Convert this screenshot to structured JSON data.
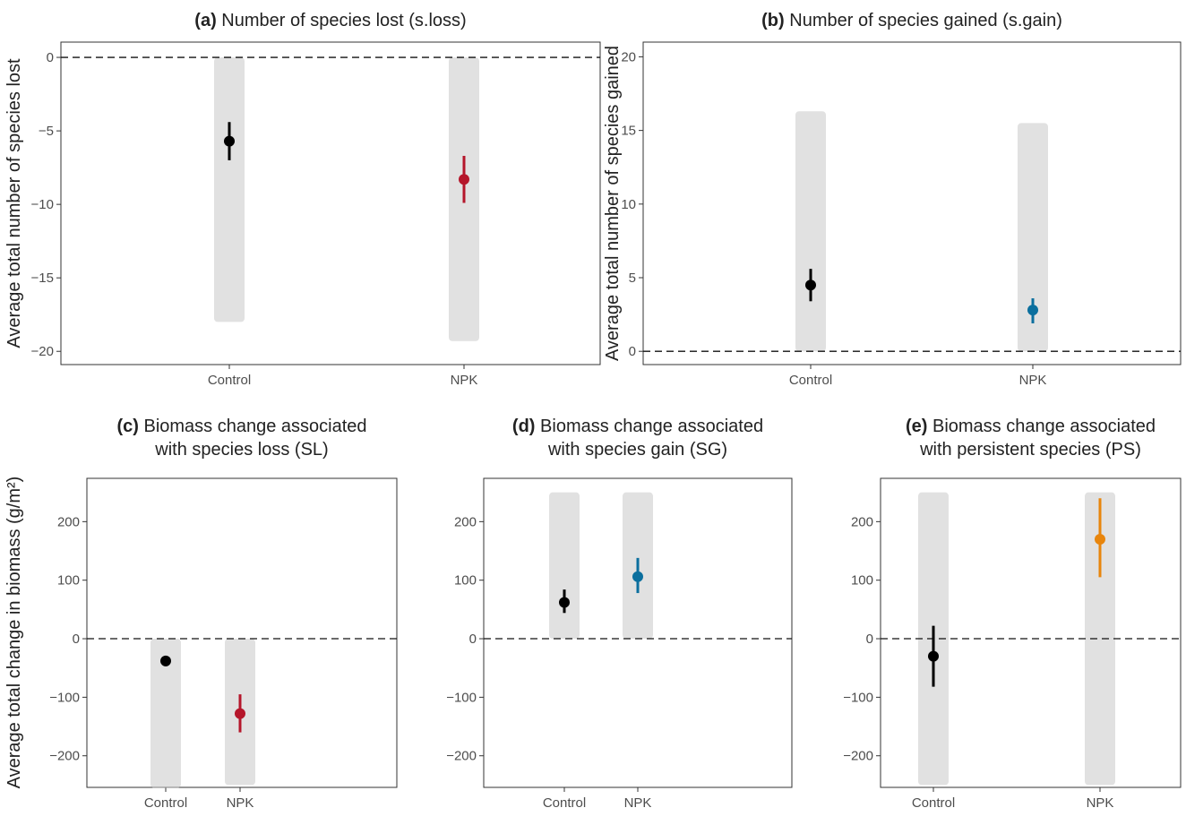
{
  "chart_data": [
    {
      "type": "pointrange",
      "tag": "(a)",
      "title": [
        "Number of species lost (s.loss)"
      ],
      "ylabel": "Average total number of species lost",
      "categories": [
        "Control",
        "NPK"
      ],
      "colors": [
        "#000000",
        "#b5162b"
      ],
      "values": [
        -5.7,
        -8.3
      ],
      "lower": [
        -7.0,
        -9.9
      ],
      "upper": [
        -4.4,
        -6.7
      ],
      "spread_low": [
        -18,
        -19.3
      ],
      "spread_high": [
        0,
        0
      ],
      "hline": 0,
      "ylim": [
        -20.9,
        1.04
      ],
      "yticks": [
        {
          "value": 0,
          "label": "0"
        },
        {
          "value": -5,
          "label": "−5"
        },
        {
          "value": -10,
          "label": "−10"
        },
        {
          "value": -15,
          "label": "−15"
        },
        {
          "value": -20,
          "label": "−20"
        }
      ]
    },
    {
      "type": "pointrange",
      "tag": "(b)",
      "title": [
        "Number of species gained (s.gain)"
      ],
      "ylabel": "Average total number of species gained",
      "categories": [
        "Control",
        "NPK"
      ],
      "colors": [
        "#000000",
        "#0b6f9e"
      ],
      "values": [
        4.5,
        2.8
      ],
      "lower": [
        3.4,
        1.9
      ],
      "upper": [
        5.6,
        3.6
      ],
      "spread_low": [
        0,
        0
      ],
      "spread_high": [
        16.3,
        15.5
      ],
      "hline": 0,
      "ylim": [
        -0.9,
        21
      ],
      "yticks": [
        0,
        5,
        10,
        15,
        20
      ]
    },
    {
      "type": "pointrange",
      "tag": "(c)",
      "title": [
        "Biomass change associated",
        "with species loss (SL)"
      ],
      "ylabel": "Average total change in biomass (g/m²)",
      "categories": [
        "Control",
        "NPK"
      ],
      "colors": [
        "#000000",
        "#b5162b"
      ],
      "values": [
        -38,
        -128
      ],
      "lower": [
        -47,
        -160
      ],
      "upper": [
        -30,
        -95
      ],
      "spread_low": [
        -255,
        -250
      ],
      "spread_high": [
        0,
        0
      ],
      "hline": 0,
      "ylim": [
        -254,
        274
      ],
      "yticks": [
        {
          "value": -200,
          "label": "−200"
        },
        {
          "value": -100,
          "label": "−100"
        },
        0,
        100,
        200
      ]
    },
    {
      "type": "pointrange",
      "tag": "(d)",
      "title": [
        "Biomass change associated",
        "with species gain (SG)"
      ],
      "categories": [
        "Control",
        "NPK"
      ],
      "colors": [
        "#000000",
        "#0b6f9e"
      ],
      "values": [
        62,
        106
      ],
      "lower": [
        44,
        78
      ],
      "upper": [
        84,
        138
      ],
      "spread_low": [
        0,
        0
      ],
      "spread_high": [
        250,
        250
      ],
      "hline": 0,
      "ylim": [
        -254,
        274
      ],
      "yticks": [
        {
          "value": -200,
          "label": "−200"
        },
        {
          "value": -100,
          "label": "−100"
        },
        0,
        100,
        200
      ]
    },
    {
      "type": "pointrange",
      "tag": "(e)",
      "title": [
        "Biomass change associated",
        "with persistent species (PS)"
      ],
      "categories": [
        "Control",
        "NPK"
      ],
      "colors": [
        "#000000",
        "#e8850c"
      ],
      "values": [
        -30,
        170
      ],
      "lower": [
        -82,
        105
      ],
      "upper": [
        22,
        240
      ],
      "spread_low": [
        -250,
        -250
      ],
      "spread_high": [
        250,
        250
      ],
      "hline": 0,
      "ylim": [
        -254,
        274
      ],
      "yticks": [
        {
          "value": -200,
          "label": "−200"
        },
        {
          "value": -100,
          "label": "−100"
        },
        0,
        100,
        200
      ]
    }
  ]
}
